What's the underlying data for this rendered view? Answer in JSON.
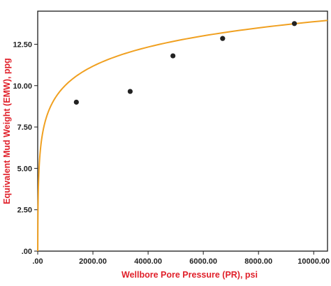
{
  "chart_data": {
    "type": "scatter",
    "title": "",
    "xlabel": "Wellbore Pore Pressure (PR), psi",
    "ylabel": "Equivalent Mud Weight (EMW), ppg",
    "xlim": [
      0,
      10500
    ],
    "ylim": [
      0,
      14.5
    ],
    "x_ticks": [
      0,
      2000,
      4000,
      6000,
      8000,
      10000
    ],
    "x_tick_labels": [
      ".00",
      "2000.00",
      "4000.00",
      "6000.00",
      "8000.00",
      "10000.00"
    ],
    "y_ticks": [
      0,
      2.5,
      5,
      7.5,
      10,
      12.5
    ],
    "y_tick_labels": [
      ".00",
      "2.50",
      "5.00",
      "7.50",
      "10.00",
      "12.50"
    ],
    "grid": false,
    "legend": "none",
    "series": [
      {
        "type": "scatter",
        "x": [
          1400,
          3350,
          4900,
          6700,
          9300
        ],
        "y": [
          9.0,
          9.65,
          11.8,
          12.85,
          13.75
        ],
        "color": "#222222"
      },
      {
        "type": "line",
        "fit": "logarithmic",
        "equation_form": "y = a + b*ln(x)",
        "coefficients": {
          "a": -1.52,
          "b": 1.67
        },
        "color": "#f0a020"
      }
    ],
    "axis_title_color": "#e0202a"
  }
}
